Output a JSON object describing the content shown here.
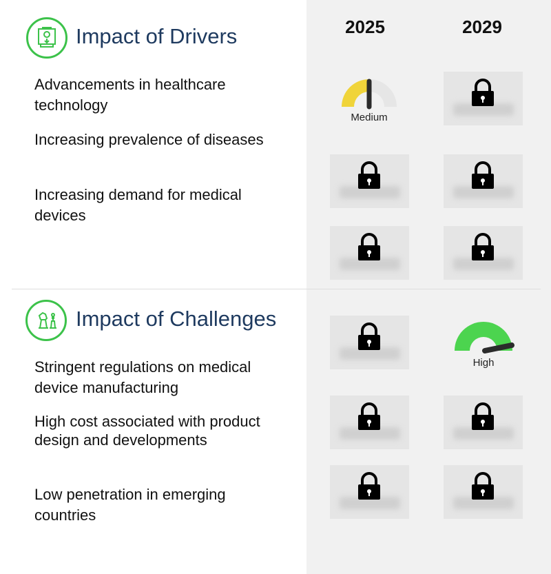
{
  "years": [
    "2025",
    "2029"
  ],
  "drivers": {
    "title": "Impact of Drivers",
    "icon": "settings-monitor-icon",
    "items": [
      "Advancements in healthcare technology",
      "Increasing prevalence of diseases",
      "Increasing demand for medical devices"
    ],
    "gauge_2025": {
      "label": "Medium",
      "level": 0.5,
      "color": "#f0d43a"
    }
  },
  "challenges": {
    "title": "Impact of Challenges",
    "icon": "chess-pieces-icon",
    "items": [
      "Stringent regulations on medical device manufacturing",
      "High cost associated with product design and developments",
      "Low penetration in emerging countries"
    ],
    "gauge_2029": {
      "label": "High",
      "level": 0.9,
      "color": "#4cd44f"
    }
  },
  "colors": {
    "accent": "#3cc24a",
    "title": "#1e3a5f",
    "lock_bg": "#e5e5e5"
  },
  "lock_icon": "lock-icon"
}
